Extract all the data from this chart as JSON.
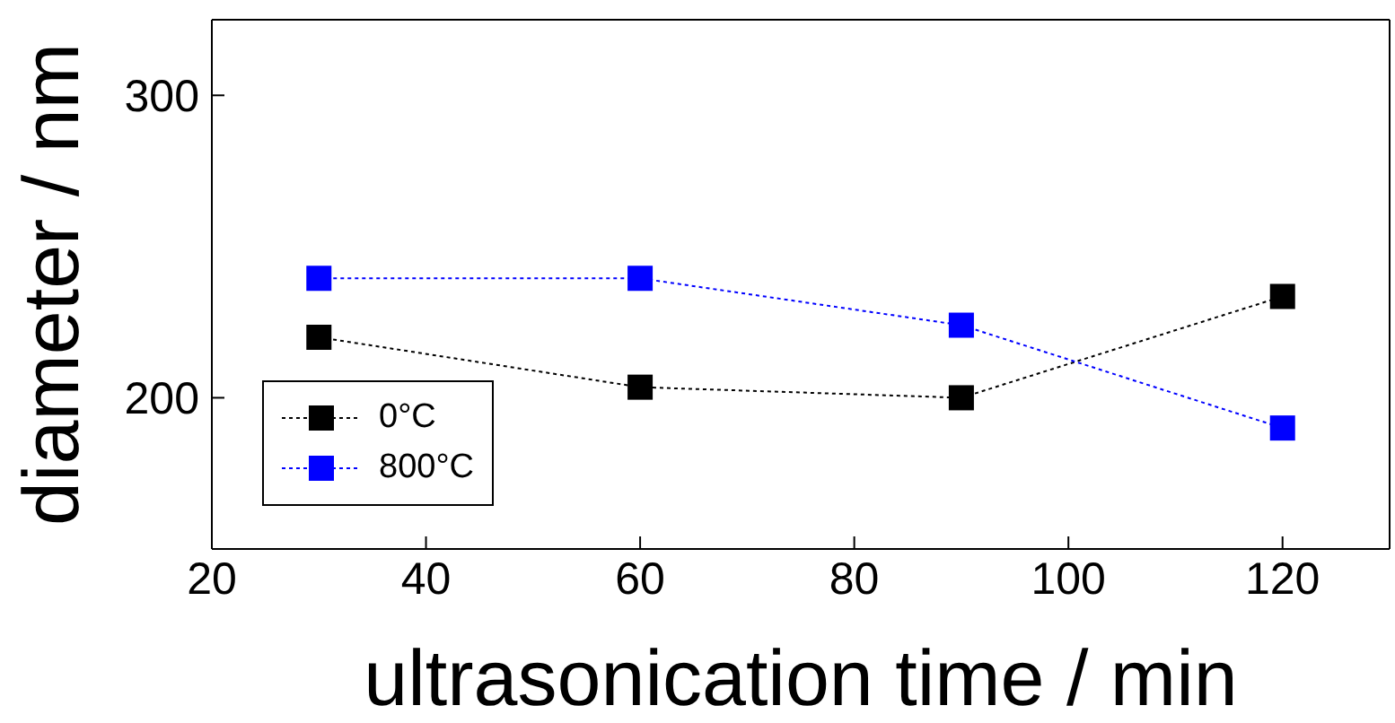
{
  "chart_data": {
    "type": "line",
    "xlabel": "ultrasonication time / min",
    "ylabel": "diameter / nm",
    "x": [
      30,
      60,
      90,
      120
    ],
    "series": [
      {
        "name": "0°C",
        "color": "#000000",
        "values": [
          220,
          203.5,
          200,
          233.5
        ]
      },
      {
        "name": "800°C",
        "color": "#0000ff",
        "values": [
          239.5,
          239.5,
          224,
          190
        ]
      }
    ],
    "xlim": [
      20,
      130
    ],
    "xticks": [
      20,
      40,
      60,
      80,
      100,
      120
    ],
    "ylim": [
      150,
      325
    ],
    "yticks": [
      200,
      300
    ],
    "grid": false,
    "legend": "bottom left",
    "marker": "square",
    "line_style": "dotted"
  }
}
